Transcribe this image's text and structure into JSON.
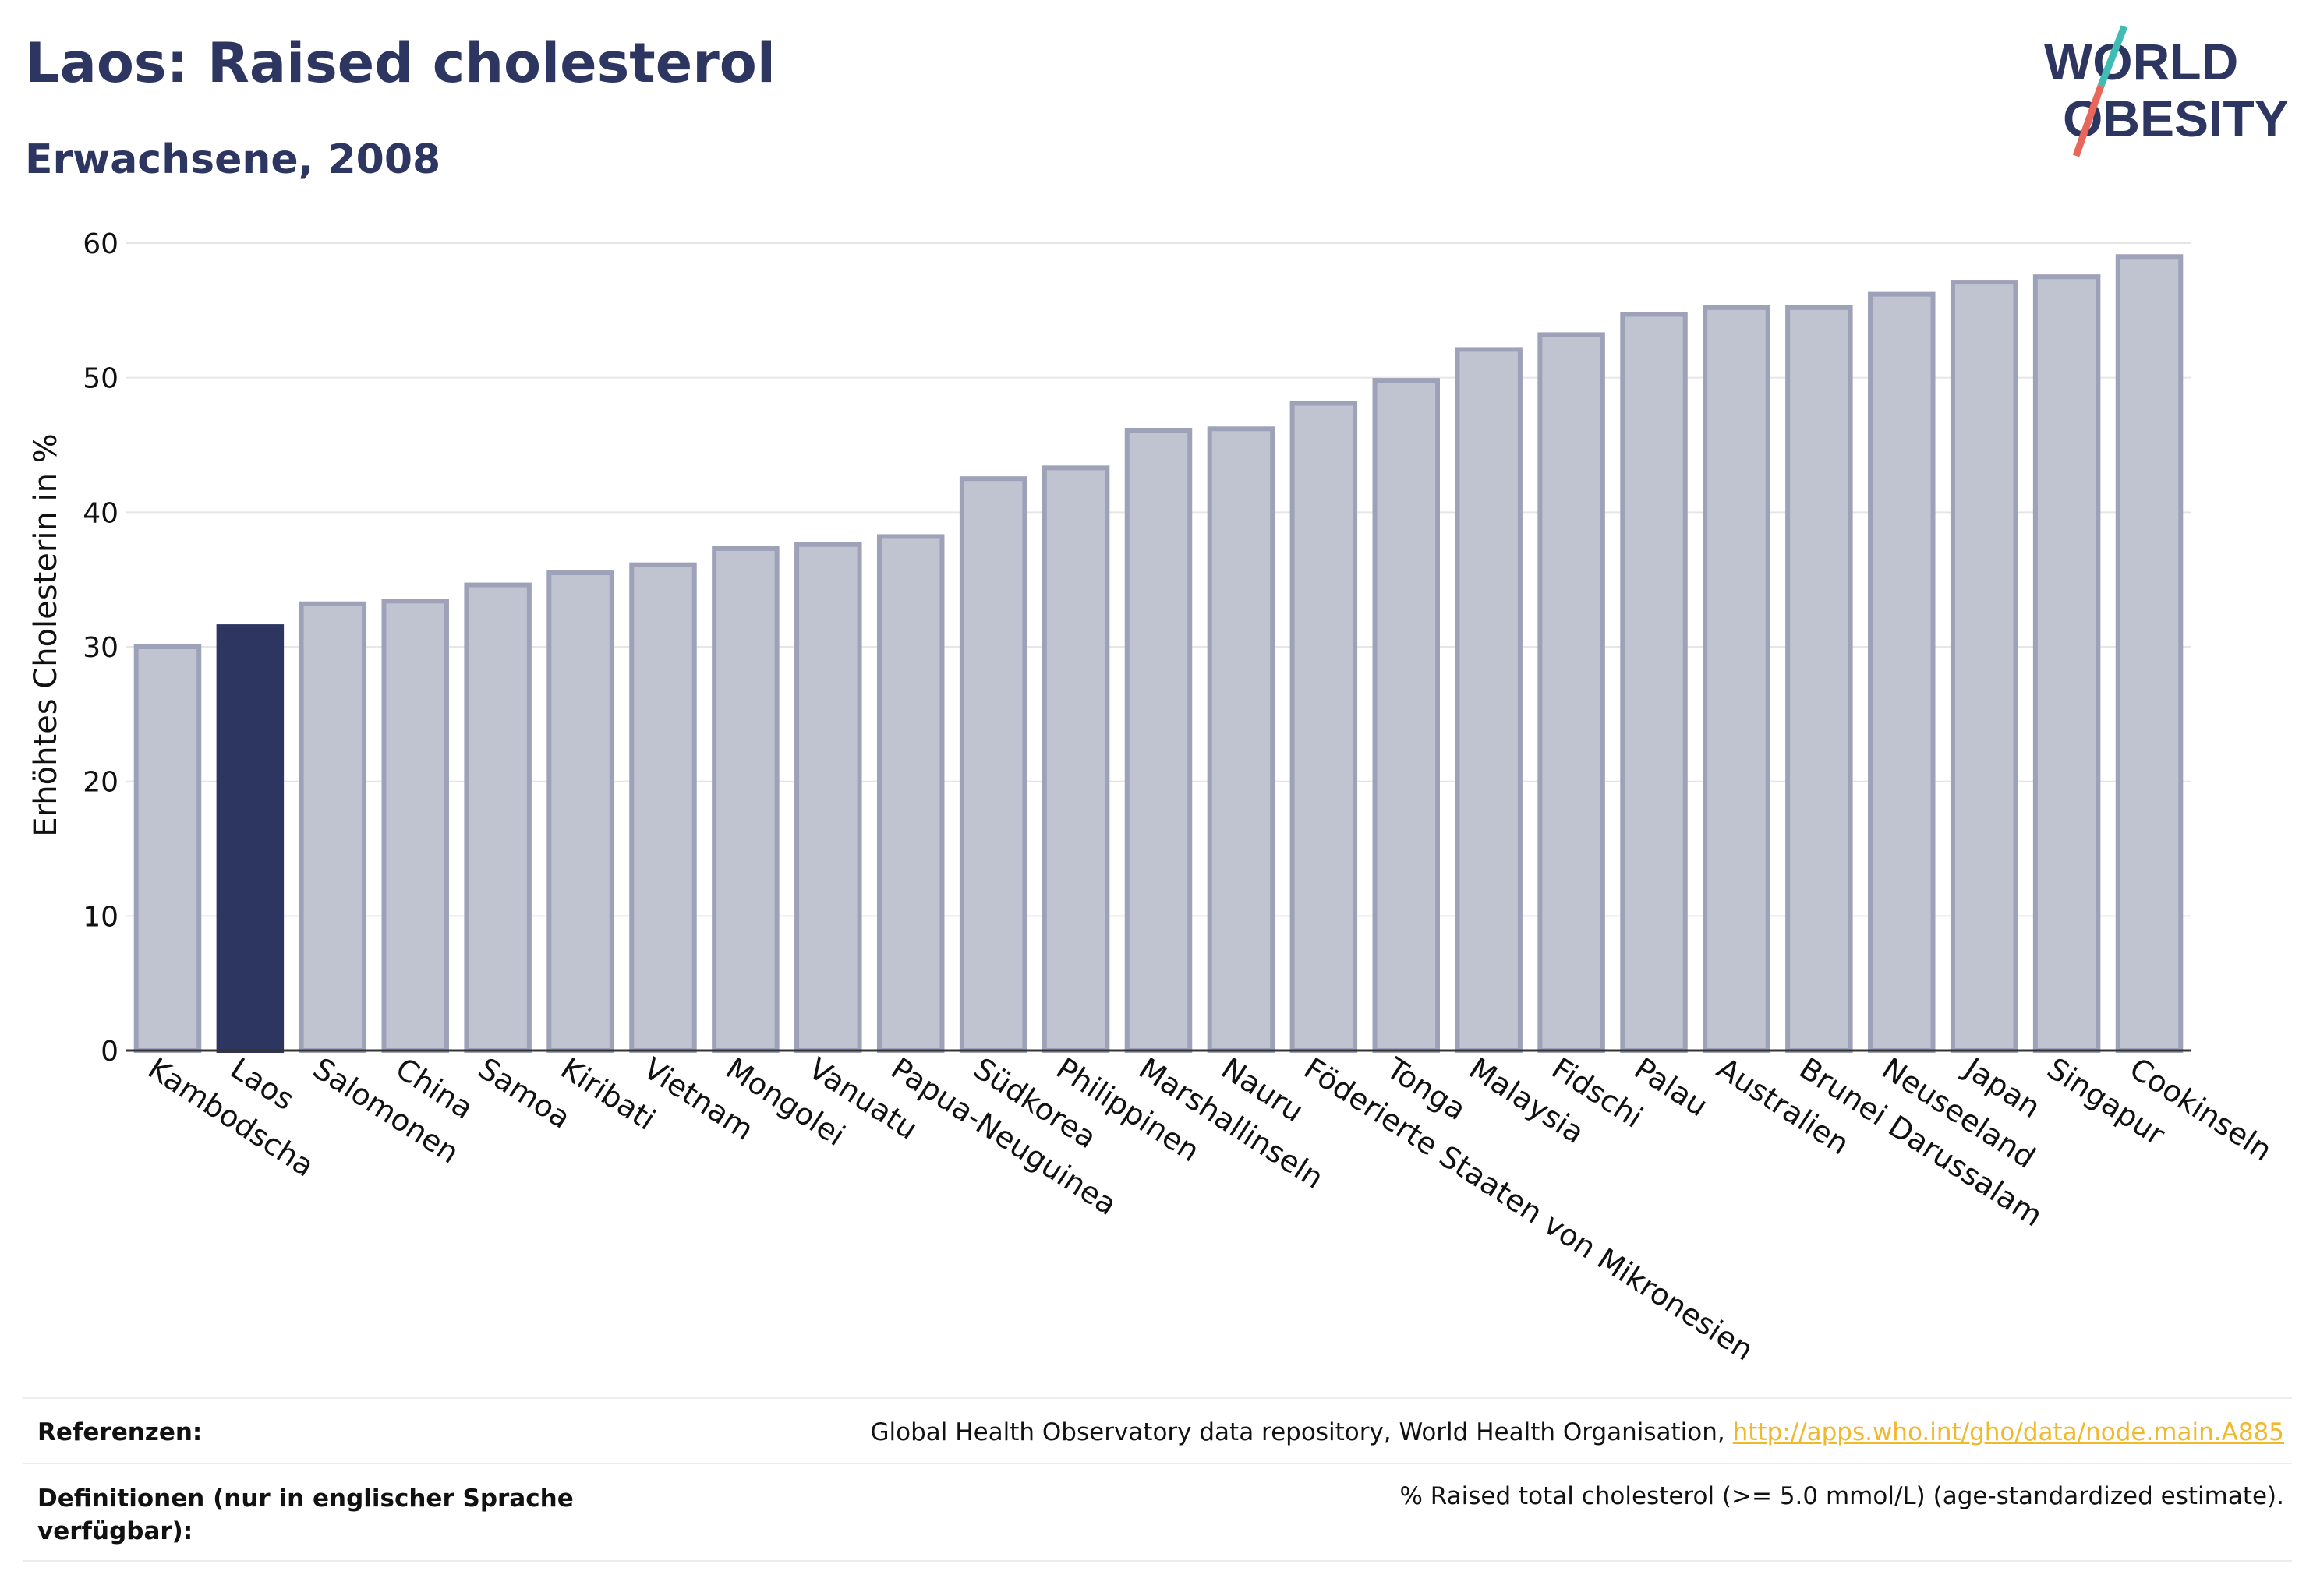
{
  "header": {
    "title": "Laos: Raised cholesterol",
    "subtitle": "Erwachsene, 2008"
  },
  "logo": {
    "line1": "WORLD",
    "line2": "OBESITY"
  },
  "chart_data": {
    "type": "bar",
    "ylabel": "Erhöhtes Cholesterin in %",
    "xlabel": "",
    "ylim": [
      0,
      60
    ],
    "yticks": [
      0,
      10,
      20,
      30,
      40,
      50,
      60
    ],
    "grid": true,
    "highlight": "Laos",
    "colors": {
      "default": "#c0c3d0",
      "default_stroke": "#9ea2b9",
      "highlight": "#2d3561"
    },
    "categories": [
      "Kambodscha",
      "Laos",
      "Salomonen",
      "China",
      "Samoa",
      "Kiribati",
      "Vietnam",
      "Mongolei",
      "Vanuatu",
      "Papua-Neuguinea",
      "Südkorea",
      "Philippinen",
      "Marshallinseln",
      "Nauru",
      "Föderierte Staaten von Mikronesien",
      "Tonga",
      "Malaysia",
      "Fidschi",
      "Palau",
      "Australien",
      "Brunei Darussalam",
      "Neuseeland",
      "Japan",
      "Singapur",
      "Cookinseln"
    ],
    "values": [
      30.0,
      31.5,
      33.2,
      33.4,
      34.6,
      35.5,
      36.1,
      37.3,
      37.6,
      38.2,
      42.5,
      43.3,
      46.1,
      46.2,
      48.1,
      49.8,
      52.1,
      53.2,
      54.7,
      55.2,
      55.2,
      56.2,
      57.1,
      57.5,
      59.0
    ]
  },
  "references": {
    "label": "Referenzen:",
    "text": "Global Health Observatory data repository, World Health Organisation, ",
    "link": "http://apps.who.int/gho/data/node.main.A885"
  },
  "definitions": {
    "label_line1": "Definitionen (nur in englischer Sprache",
    "label_line2": "verfügbar):",
    "text": "% Raised total cholesterol (>= 5.0 mmol/L) (age-standardized estimate)."
  }
}
